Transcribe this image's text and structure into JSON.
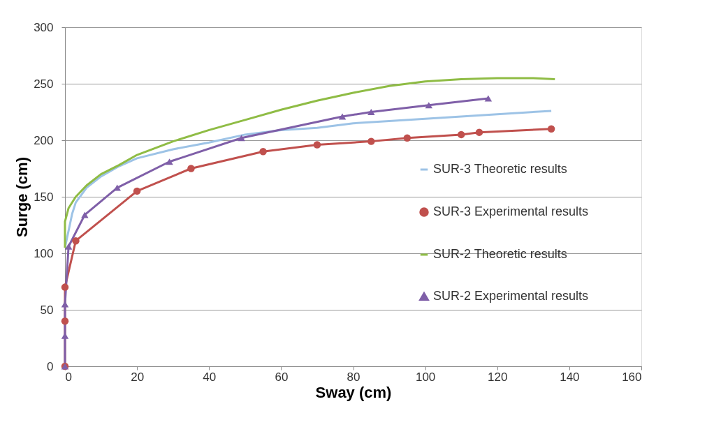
{
  "chart_data": {
    "type": "line",
    "xlabel": "Sway (cm)",
    "ylabel": "Surge (cm)",
    "xlim": [
      0,
      160
    ],
    "xticks": [
      0,
      20,
      40,
      60,
      80,
      100,
      120,
      140,
      160
    ],
    "ylim": [
      0,
      300
    ],
    "yticks": [
      0,
      50,
      100,
      150,
      200,
      250,
      300
    ],
    "grid": "y",
    "legend": "right",
    "series": [
      {
        "name": "SUR-3 Theoretic results",
        "color": "#9dc3e6",
        "marker": "none",
        "x": [
          0,
          1,
          2,
          3,
          6,
          10,
          15,
          20,
          30,
          40,
          50,
          60,
          70,
          80,
          90,
          100,
          110,
          120,
          135
        ],
        "values": [
          105,
          120,
          135,
          145,
          158,
          168,
          177,
          184,
          192,
          198,
          205,
          209,
          211,
          215,
          217,
          219,
          221,
          223,
          226
        ]
      },
      {
        "name": "SUR-3 Experimental results",
        "color": "#c0504d",
        "marker": "circle",
        "x": [
          0,
          0,
          0,
          3,
          20,
          35,
          55,
          70,
          85,
          95,
          110,
          115,
          135
        ],
        "values": [
          0,
          40,
          70,
          111,
          155,
          175,
          190,
          196,
          199,
          202,
          205,
          207,
          210
        ]
      },
      {
        "name": "SUR-2 Theoretic results",
        "color": "#8fbc45",
        "marker": "none",
        "x": [
          0,
          0,
          1,
          3,
          6,
          10,
          15,
          20,
          30,
          40,
          50,
          60,
          70,
          80,
          90,
          100,
          110,
          120,
          130,
          136
        ],
        "values": [
          105,
          128,
          140,
          150,
          160,
          170,
          178,
          187,
          199,
          209,
          218,
          227,
          235,
          242,
          248,
          252,
          254,
          255,
          255,
          254
        ]
      },
      {
        "name": "SUR-2 Experimental results",
        "color": "#7f5fa8",
        "marker": "triangle",
        "x": [
          0,
          0,
          0,
          1,
          5.5,
          14.5,
          29,
          49,
          77,
          85,
          101,
          117.5
        ],
        "values": [
          0,
          27,
          55,
          106,
          134,
          158,
          181,
          202,
          221,
          225,
          231,
          237
        ]
      }
    ]
  }
}
